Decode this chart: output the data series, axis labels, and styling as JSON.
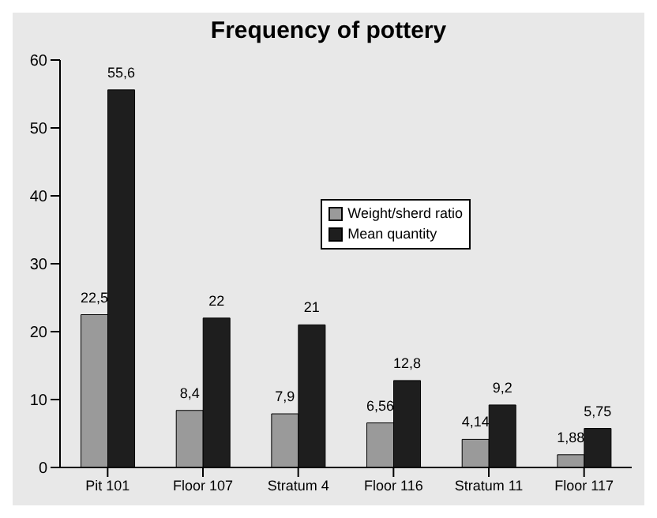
{
  "chart_data": {
    "type": "bar",
    "title": "Frequency of pottery",
    "categories": [
      "Pit 101",
      "Floor 107",
      "Stratum 4",
      "Floor 116",
      "Stratum 11",
      "Floor 117"
    ],
    "series": [
      {
        "name": "Weight/sherd ratio",
        "color": "#9a9a9a",
        "values": [
          22.5,
          8.4,
          7.9,
          6.56,
          4.14,
          1.88
        ],
        "value_labels": [
          "22,5",
          "8,4",
          "7,9",
          "6,56",
          "4,14",
          "1,88"
        ]
      },
      {
        "name": "Mean quantity",
        "color": "#1e1e1e",
        "values": [
          55.6,
          22,
          21,
          12.8,
          9.2,
          5.75
        ],
        "value_labels": [
          "55,6",
          "22",
          "21",
          "12,8",
          "9,2",
          "5,75"
        ]
      }
    ],
    "ylim": [
      0,
      60
    ],
    "yticks": [
      0,
      10,
      20,
      30,
      40,
      50,
      60
    ],
    "grid": false,
    "legend": "top right"
  }
}
